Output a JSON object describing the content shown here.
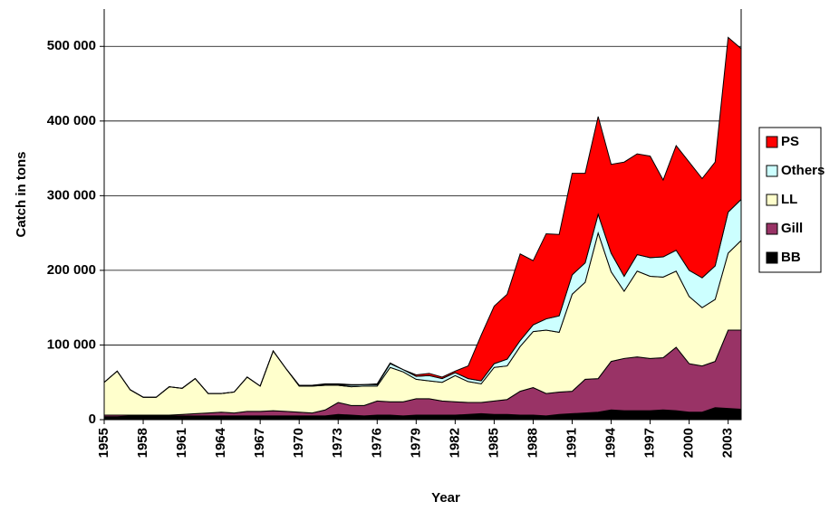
{
  "chart_data": {
    "type": "stacked_area",
    "x_label": "Year",
    "y_label": "Catch in tons",
    "x": [
      1955,
      1956,
      1957,
      1958,
      1959,
      1960,
      1961,
      1962,
      1963,
      1964,
      1965,
      1966,
      1967,
      1968,
      1969,
      1970,
      1971,
      1972,
      1973,
      1974,
      1975,
      1976,
      1977,
      1978,
      1979,
      1980,
      1981,
      1982,
      1983,
      1984,
      1985,
      1986,
      1987,
      1988,
      1989,
      1990,
      1991,
      1992,
      1993,
      1994,
      1995,
      1996,
      1997,
      1998,
      1999,
      2000,
      2001,
      2002,
      2003,
      2004
    ],
    "xlim": [
      1955,
      2004
    ],
    "xticks": [
      1955,
      1958,
      1961,
      1964,
      1967,
      1970,
      1973,
      1976,
      1979,
      1982,
      1985,
      1988,
      1991,
      1994,
      1997,
      2000,
      2003
    ],
    "ylim": [
      0,
      550000
    ],
    "yticks": [
      0,
      {
        "value": 100000,
        "label": "100 000"
      },
      {
        "value": 200000,
        "label": "200 000"
      },
      {
        "value": 300000,
        "label": "300 000"
      },
      {
        "value": 400000,
        "label": "400 000"
      },
      {
        "value": 500000,
        "label": "500 000"
      }
    ],
    "grid": true,
    "legend": "right",
    "series": [
      {
        "name": "BB",
        "color": "#000000",
        "values": [
          4000,
          4000,
          5000,
          5000,
          5000,
          5000,
          5000,
          5000,
          5000,
          5000,
          5000,
          5000,
          5000,
          5000,
          5000,
          5000,
          5000,
          5000,
          7000,
          6000,
          5000,
          6000,
          6000,
          5000,
          6000,
          6000,
          6000,
          6000,
          7000,
          8000,
          7000,
          7000,
          6000,
          6000,
          5000,
          7000,
          8000,
          9000,
          10000,
          13000,
          12000,
          12000,
          12000,
          13000,
          12000,
          10000,
          10000,
          16000,
          15000,
          14000
        ]
      },
      {
        "name": "Gill",
        "color": "#993366",
        "values": [
          2000,
          2000,
          1000,
          1000,
          1000,
          1000,
          2000,
          3000,
          4000,
          5000,
          4000,
          6000,
          6000,
          7000,
          6000,
          5000,
          4000,
          8000,
          16000,
          13000,
          14000,
          19000,
          18000,
          19000,
          22000,
          22000,
          19000,
          18000,
          16000,
          15000,
          18000,
          20000,
          32000,
          37000,
          30000,
          30000,
          30000,
          45000,
          45000,
          65000,
          70000,
          72000,
          70000,
          70000,
          85000,
          65000,
          62000,
          62000,
          105000,
          106000
        ]
      },
      {
        "name": "LL",
        "color": "#ffffcc",
        "values": [
          44000,
          59000,
          34000,
          24000,
          24000,
          38000,
          35000,
          47000,
          26000,
          25000,
          28000,
          46000,
          34000,
          80000,
          57000,
          35000,
          36000,
          33000,
          23000,
          25000,
          26000,
          20000,
          46000,
          40000,
          26000,
          24000,
          25000,
          35000,
          28000,
          25000,
          45000,
          45000,
          60000,
          75000,
          85000,
          80000,
          130000,
          130000,
          195000,
          120000,
          90000,
          115000,
          110000,
          108000,
          102000,
          90000,
          78000,
          83000,
          103000,
          120000
        ]
      },
      {
        "name": "Others",
        "color": "#ccffff",
        "values": [
          0,
          0,
          0,
          0,
          0,
          0,
          0,
          0,
          0,
          0,
          0,
          0,
          0,
          0,
          0,
          1000,
          1000,
          1000,
          1000,
          2000,
          2000,
          2000,
          5000,
          3000,
          4000,
          7000,
          5000,
          4000,
          4000,
          4000,
          5000,
          9000,
          8000,
          9000,
          15000,
          22000,
          26000,
          26000,
          25000,
          25000,
          20000,
          22000,
          25000,
          27000,
          28000,
          35000,
          40000,
          45000,
          55000,
          55000
        ]
      },
      {
        "name": "PS",
        "color": "#ff0000",
        "values": [
          0,
          0,
          0,
          0,
          0,
          0,
          0,
          0,
          0,
          0,
          0,
          0,
          0,
          0,
          0,
          0,
          0,
          1000,
          1000,
          1000,
          0,
          1000,
          1000,
          0,
          2000,
          3000,
          2000,
          2000,
          17000,
          61000,
          77000,
          87000,
          116000,
          86000,
          114000,
          109000,
          136000,
          120000,
          131000,
          119000,
          153000,
          135000,
          136000,
          103000,
          140000,
          145000,
          133000,
          139000,
          234000,
          202000
        ]
      }
    ]
  }
}
